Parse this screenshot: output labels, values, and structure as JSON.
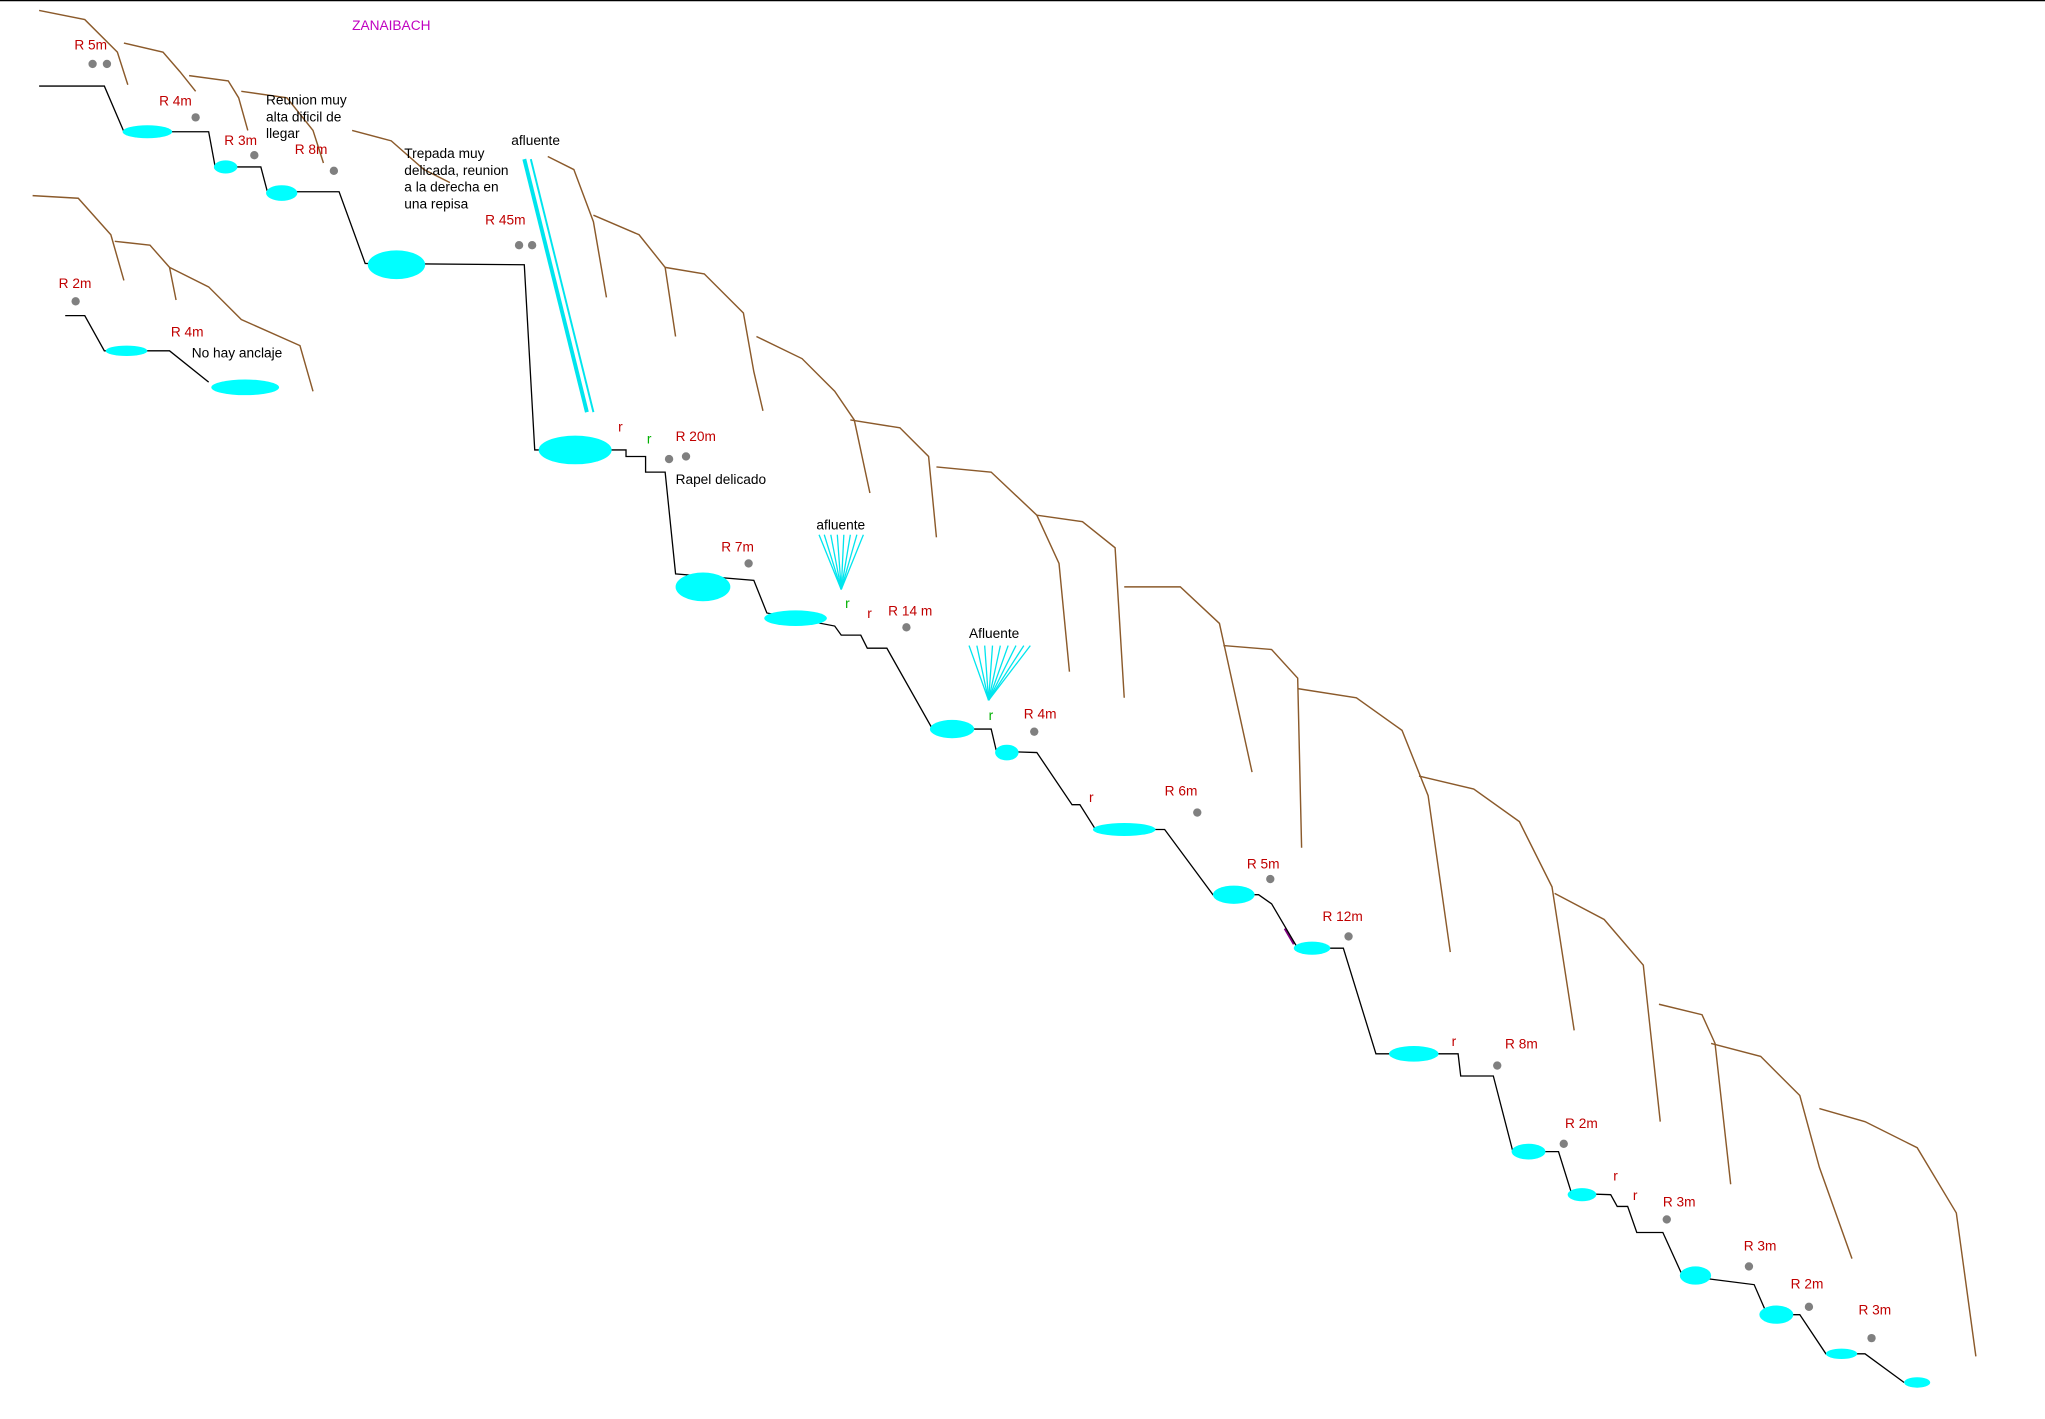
{
  "title": "ZANAIBACH",
  "rappels": [
    "R 5m",
    "R 4m",
    "R 3m",
    "R 8m",
    "R 45m",
    "R 2m",
    "R 4m",
    "R 20m",
    "R 7m",
    "R 14 m",
    "R 4m",
    "R 6m",
    "R 5m",
    "R 12m",
    "R 8m",
    "R 2m",
    "R 3m",
    "R 3m",
    "R 2m",
    "R 3m"
  ],
  "notes": [
    [
      "Reunion muy",
      "alta dificil de",
      "llegar"
    ],
    [
      "Trepada muy",
      "delicada, reunion",
      "a la derecha en",
      "una repisa"
    ],
    [
      "afluente"
    ],
    [
      "No hay anclaje"
    ],
    [
      "Rapel delicado"
    ],
    [
      "afluente"
    ],
    [
      "Afluente"
    ]
  ],
  "markers": [
    "r",
    "r",
    "r",
    "r",
    "r",
    "r",
    "r",
    "r",
    "r"
  ]
}
